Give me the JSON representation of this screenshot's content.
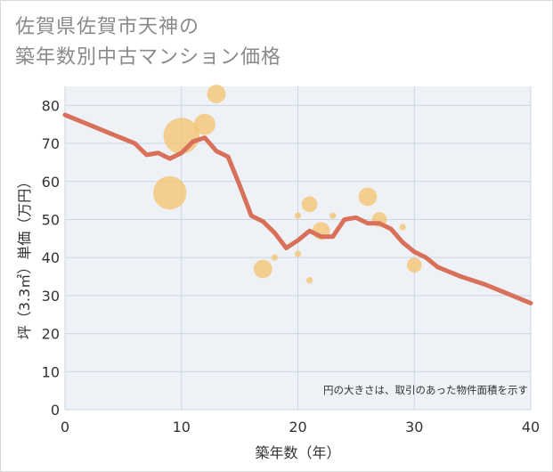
{
  "title_line1": "佐賀県佐賀市天神の",
  "title_line2": "築年数別中古マンション価格",
  "colors": {
    "line": "#d9705a",
    "bubble": "#f5c26b",
    "grid": "#c9d6e3",
    "plot_bg": "#eef2f7"
  },
  "chart_data": {
    "type": "scatter",
    "title": "佐賀県佐賀市天神の築年数別中古マンション価格",
    "xlabel": "築年数（年）",
    "ylabel": "坪（3.3㎡）単価（万円）",
    "xlim": [
      0,
      40
    ],
    "ylim": [
      0,
      85
    ],
    "x_ticks": [
      0,
      10,
      20,
      30,
      40
    ],
    "y_ticks": [
      0,
      10,
      20,
      30,
      40,
      50,
      60,
      70,
      80
    ],
    "note": "円の大きさは、取引のあった物件面積を示す",
    "bubbles": [
      {
        "x": 9,
        "y": 57,
        "size": 3.6
      },
      {
        "x": 10,
        "y": 72,
        "size": 3.9
      },
      {
        "x": 12,
        "y": 75,
        "size": 2.3
      },
      {
        "x": 13,
        "y": 83,
        "size": 2.0
      },
      {
        "x": 17,
        "y": 37,
        "size": 2.0
      },
      {
        "x": 18,
        "y": 40,
        "size": 0.7
      },
      {
        "x": 20,
        "y": 51,
        "size": 0.7
      },
      {
        "x": 20,
        "y": 41,
        "size": 0.7
      },
      {
        "x": 21,
        "y": 54,
        "size": 1.7
      },
      {
        "x": 21,
        "y": 34,
        "size": 0.7
      },
      {
        "x": 22,
        "y": 47,
        "size": 1.9
      },
      {
        "x": 23,
        "y": 51,
        "size": 0.7
      },
      {
        "x": 26,
        "y": 56,
        "size": 2.0
      },
      {
        "x": 27,
        "y": 50,
        "size": 1.6
      },
      {
        "x": 29,
        "y": 48,
        "size": 0.7
      },
      {
        "x": 30,
        "y": 38,
        "size": 1.6
      }
    ],
    "trend": {
      "x": [
        0,
        2,
        4,
        6,
        7,
        8,
        9,
        10,
        11,
        12,
        13,
        14,
        15,
        16,
        17,
        18,
        19,
        20,
        21,
        22,
        23,
        24,
        25,
        26,
        27,
        28,
        29,
        30,
        31,
        32,
        34,
        36,
        38,
        40
      ],
      "y": [
        77.5,
        75,
        72.5,
        70,
        67,
        67.5,
        66,
        67.5,
        70.5,
        71.5,
        68,
        66.5,
        59,
        51,
        49.5,
        46.5,
        42.5,
        44.5,
        47,
        45.5,
        45.5,
        50,
        50.5,
        49,
        49,
        47.5,
        44,
        41.5,
        40,
        37.5,
        35,
        33,
        30.5,
        28
      ]
    }
  }
}
